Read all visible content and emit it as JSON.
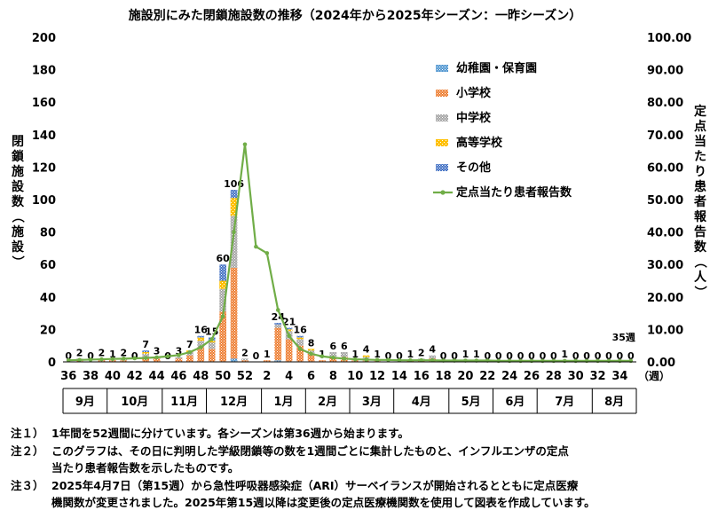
{
  "chart_data": {
    "type": "bar",
    "title": "施設別にみた閉鎖施設数の推移（2024年から2025年シーズン：一昨シーズン）",
    "ylabel": "閉鎖施設数（施設）",
    "y2label": "定点当たり患者報告数（人）",
    "xlabel": "（週）",
    "ylim": [
      0,
      200
    ],
    "y2lim": [
      0,
      100
    ],
    "y_ticks": [
      "0",
      "20",
      "40",
      "60",
      "80",
      "100",
      "120",
      "140",
      "160",
      "180",
      "200"
    ],
    "y2_ticks": [
      "0.00",
      "10.00",
      "20.00",
      "30.00",
      "40.00",
      "50.00",
      "60.00",
      "70.00",
      "80.00",
      "90.00",
      "100.00"
    ],
    "week_labels": [
      "36",
      "38",
      "40",
      "42",
      "44",
      "46",
      "48",
      "50",
      "52",
      "2",
      "4",
      "6",
      "8",
      "10",
      "12",
      "14",
      "16",
      "18",
      "20",
      "22",
      "24",
      "26",
      "28",
      "30",
      "32",
      "34"
    ],
    "month_labels": [
      "9月",
      "10月",
      "11月",
      "12月",
      "1月",
      "2月",
      "3月",
      "4月",
      "5月",
      "6月",
      "7月",
      "8月"
    ],
    "month_spans": [
      4,
      5,
      4,
      5,
      4,
      4,
      4,
      5,
      4,
      4,
      5,
      4
    ],
    "legend": "right-top-inside",
    "categories": [
      "36",
      "37",
      "38",
      "39",
      "40",
      "41",
      "42",
      "43",
      "44",
      "45",
      "46",
      "47",
      "48",
      "49",
      "50",
      "51",
      "52",
      "1",
      "2",
      "3",
      "4",
      "5",
      "6",
      "7",
      "8",
      "9",
      "10",
      "11",
      "12",
      "13",
      "14",
      "15",
      "16",
      "17",
      "18",
      "19",
      "20",
      "21",
      "22",
      "23",
      "24",
      "25",
      "26",
      "27",
      "28",
      "29",
      "30",
      "31",
      "32",
      "33",
      "34",
      "35"
    ],
    "totals": [
      "0",
      "2",
      "0",
      "2",
      "1",
      "2",
      "0",
      "7",
      "3",
      "0",
      "3",
      "7",
      "16",
      "15",
      "60",
      "106",
      "2",
      "0",
      "1",
      "24",
      "21",
      "16",
      "8",
      "1",
      "6",
      "6",
      "1",
      "4",
      "1",
      "0",
      "0",
      "1",
      "2",
      "4",
      "0",
      "0",
      "1",
      "1",
      "0",
      "0",
      "0",
      "0",
      "0",
      "0",
      "0",
      "1",
      "0",
      "0",
      "0",
      "0",
      "0",
      "0"
    ],
    "last_label": "35週",
    "colors": {
      "幼稚園・保育園": "#4f95d0",
      "小学校": "#ed7d31",
      "中学校": "#a5a5a5",
      "高等学校": "#ffc000",
      "その他": "#4472c4",
      "定点当たり患者報告数": "#70ad47"
    },
    "series": [
      {
        "name": "幼稚園・保育園",
        "values": [
          0,
          0,
          0,
          0,
          0,
          0,
          0,
          0,
          0,
          0,
          0,
          0,
          0,
          0,
          0,
          2,
          0,
          0,
          0,
          1,
          0,
          0,
          0,
          0,
          0,
          0,
          0,
          0,
          0,
          0,
          0,
          0,
          0,
          0,
          0,
          0,
          0,
          0,
          0,
          0,
          0,
          0,
          0,
          0,
          0,
          0,
          0,
          0,
          0,
          0,
          0,
          0
        ]
      },
      {
        "name": "小学校",
        "values": [
          0,
          1,
          0,
          1,
          1,
          1,
          0,
          3,
          2,
          0,
          2,
          4,
          9,
          8,
          31,
          56,
          1,
          0,
          1,
          20,
          14,
          10,
          5,
          1,
          3,
          3,
          1,
          2,
          1,
          0,
          0,
          1,
          1,
          2,
          0,
          0,
          1,
          1,
          0,
          0,
          0,
          0,
          0,
          0,
          0,
          1,
          0,
          0,
          0,
          0,
          0,
          0
        ]
      },
      {
        "name": "中学校",
        "values": [
          0,
          1,
          0,
          1,
          0,
          1,
          0,
          2,
          1,
          0,
          1,
          2,
          4,
          4,
          14,
          32,
          1,
          0,
          0,
          2,
          5,
          4,
          2,
          0,
          3,
          3,
          0,
          1,
          0,
          0,
          0,
          0,
          1,
          2,
          0,
          0,
          0,
          0,
          0,
          0,
          0,
          0,
          0,
          0,
          0,
          0,
          0,
          0,
          0,
          0,
          0,
          0
        ]
      },
      {
        "name": "高等学校",
        "values": [
          0,
          0,
          0,
          0,
          0,
          0,
          0,
          1,
          0,
          0,
          0,
          1,
          2,
          1,
          5,
          11,
          0,
          0,
          0,
          0,
          1,
          1,
          1,
          0,
          0,
          0,
          0,
          1,
          0,
          0,
          0,
          0,
          0,
          0,
          0,
          0,
          0,
          0,
          0,
          0,
          0,
          0,
          0,
          0,
          0,
          0,
          0,
          0,
          0,
          0,
          0,
          0
        ]
      },
      {
        "name": "その他",
        "values": [
          0,
          0,
          0,
          0,
          0,
          0,
          0,
          1,
          0,
          0,
          0,
          0,
          1,
          2,
          10,
          5,
          0,
          0,
          0,
          1,
          1,
          1,
          0,
          0,
          0,
          0,
          0,
          0,
          0,
          0,
          0,
          0,
          0,
          0,
          0,
          0,
          0,
          0,
          0,
          0,
          0,
          0,
          0,
          0,
          0,
          0,
          0,
          0,
          0,
          0,
          0,
          0
        ]
      },
      {
        "name": "定点当たり患者報告数",
        "axis": "right",
        "type": "line",
        "values": [
          0.5,
          0.6,
          0.7,
          0.8,
          0.9,
          1.0,
          1.1,
          1.2,
          1.4,
          1.7,
          2.1,
          3.0,
          4.5,
          7.0,
          14.0,
          40.0,
          67.0,
          35.5,
          33.5,
          16.0,
          8.0,
          4.0,
          2.5,
          1.7,
          1.3,
          1.0,
          0.8,
          0.7,
          0.6,
          0.6,
          0.5,
          0.5,
          0.5,
          0.5,
          0.4,
          0.4,
          0.4,
          0.4,
          0.4,
          0.3,
          0.3,
          0.3,
          0.3,
          0.3,
          0.3,
          0.3,
          0.3,
          0.3,
          0.3,
          0.3,
          0.3,
          0.3
        ]
      }
    ]
  },
  "notes": [
    {
      "mark": "注１）",
      "lines": [
        "1年間を52週間に分けています。各シーズンは第36週から始まります。"
      ]
    },
    {
      "mark": "注２）",
      "lines": [
        "このグラフは、その日に判明した学級閉鎖等の数を1週間ごとに集計したものと、インフルエンザの定点",
        "当たり患者報告数を示したものです。"
      ]
    },
    {
      "mark": "注３）",
      "lines": [
        "2025年4月7日（第15週）から急性呼吸器感染症（ARI）サーベイランスが開始されるとともに定点医療",
        "機関数が変更されました。2025年第15週以降は変更後の定点医療機関数を使用して図表を作成しています。"
      ]
    }
  ]
}
